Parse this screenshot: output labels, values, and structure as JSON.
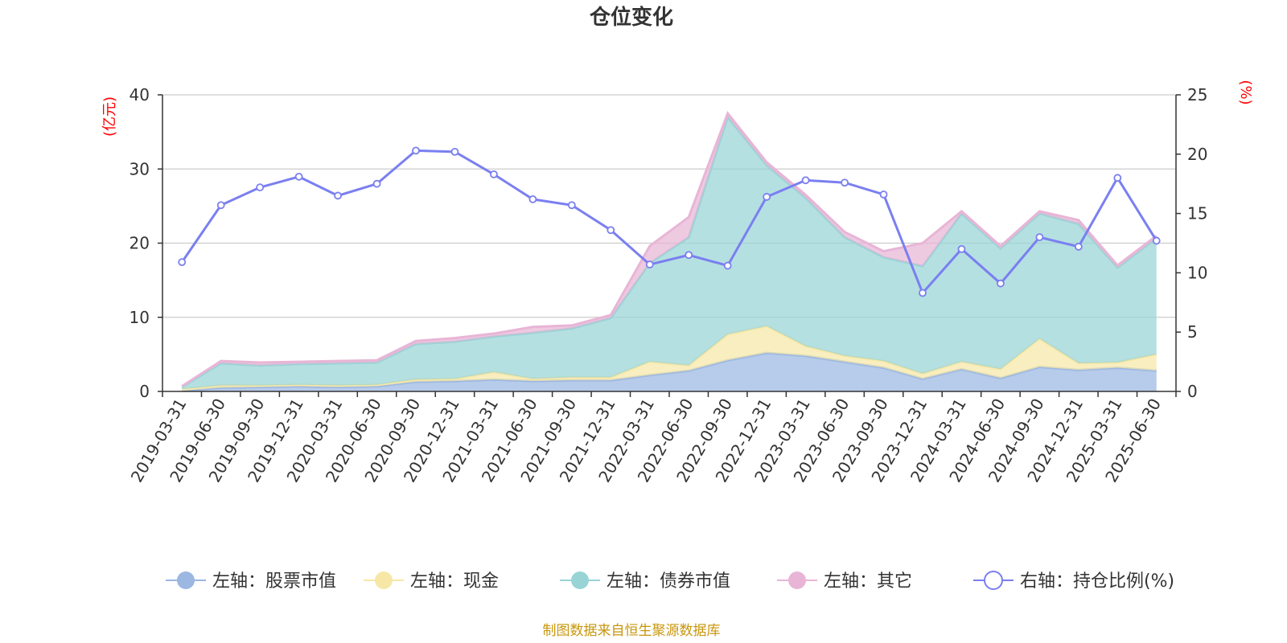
{
  "chart_data": {
    "type": "area",
    "title": "仓位变化",
    "y_left_unit": "(亿元)",
    "y_right_unit": "(%)",
    "ylim_left": [
      0,
      40
    ],
    "yticks_left": [
      0,
      10,
      20,
      30,
      40
    ],
    "ylim_right": [
      0,
      25
    ],
    "yticks_right": [
      0,
      5,
      10,
      15,
      20,
      25
    ],
    "grid": true,
    "legend_position": "bottom",
    "x": [
      "2019-03-31",
      "2019-06-30",
      "2019-09-30",
      "2019-12-31",
      "2020-03-31",
      "2020-06-30",
      "2020-09-30",
      "2020-12-31",
      "2021-03-31",
      "2021-06-30",
      "2021-09-30",
      "2021-12-31",
      "2022-03-31",
      "2022-06-30",
      "2022-09-30",
      "2022-12-31",
      "2023-03-31",
      "2023-06-30",
      "2023-09-30",
      "2023-12-31",
      "2024-03-31",
      "2024-06-30",
      "2024-09-30",
      "2024-12-31",
      "2025-03-31",
      "2025-06-30"
    ],
    "stacked_series": [
      {
        "name": "左轴：股票市值",
        "color": "#9bb7e2",
        "values": [
          0.1,
          0.5,
          0.6,
          0.7,
          0.6,
          0.7,
          1.3,
          1.4,
          1.6,
          1.4,
          1.5,
          1.5,
          2.2,
          2.8,
          4.2,
          5.2,
          4.8,
          4.0,
          3.2,
          1.7,
          3.0,
          1.8,
          3.3,
          2.9,
          3.2,
          2.8
        ]
      },
      {
        "name": "左轴：现金",
        "color": "#f7e7a6",
        "values": [
          0.2,
          0.3,
          0.2,
          0.2,
          0.2,
          0.2,
          0.3,
          0.3,
          1.0,
          0.3,
          0.4,
          0.4,
          1.8,
          0.7,
          3.5,
          3.6,
          1.3,
          0.8,
          0.9,
          0.7,
          1.0,
          1.2,
          3.8,
          0.9,
          0.7,
          2.2
        ]
      },
      {
        "name": "左轴：债券市值",
        "color": "#98d4d6",
        "values": [
          0.3,
          3.0,
          2.7,
          2.8,
          3.0,
          3.0,
          4.8,
          5.0,
          4.8,
          6.2,
          6.6,
          8.0,
          13.3,
          17.3,
          29.3,
          21.7,
          20.0,
          16.0,
          14.0,
          14.5,
          20.0,
          16.3,
          16.9,
          18.8,
          12.8,
          15.7
        ]
      },
      {
        "name": "左轴：其它",
        "color": "#e8b5d6",
        "values": [
          0.1,
          0.3,
          0.4,
          0.3,
          0.3,
          0.3,
          0.4,
          0.5,
          0.4,
          0.8,
          0.4,
          0.4,
          2.3,
          2.7,
          0.5,
          0.4,
          0.4,
          0.7,
          0.8,
          3.1,
          0.3,
          0.3,
          0.3,
          0.5,
          0.3,
          0.3
        ]
      }
    ],
    "line_series": {
      "name": "右轴：持仓比例(%)",
      "color": "#7a7ff0",
      "values": [
        10.9,
        15.7,
        17.2,
        18.1,
        16.5,
        17.5,
        20.3,
        20.2,
        18.3,
        16.2,
        15.7,
        13.6,
        10.7,
        11.5,
        10.6,
        16.4,
        17.8,
        17.6,
        16.6,
        8.3,
        12.0,
        9.1,
        13.0,
        12.2,
        18.0,
        12.7
      ]
    }
  },
  "source_note": "制图数据来自恒生聚源数据库"
}
